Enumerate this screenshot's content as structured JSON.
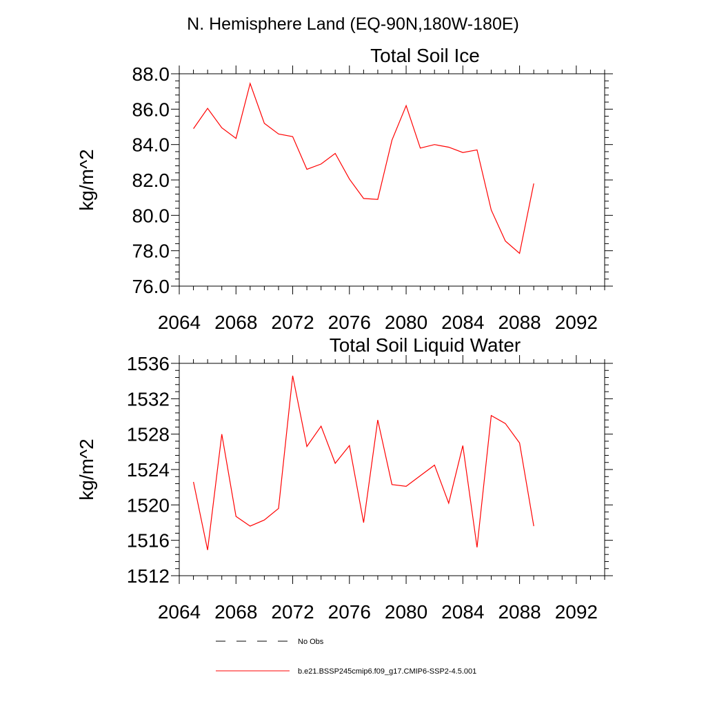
{
  "main_title": "N. Hemisphere Land (EQ-90N,180W-180E)",
  "colors": {
    "series": "#ff0000",
    "axis": "#000000",
    "obs": "#000000"
  },
  "legend": {
    "obs_label": "No Obs",
    "series_label": "b.e21.BSSP245cmip6.f09_g17.CMIP6-SSP2-4.5.001"
  },
  "chart_data": [
    {
      "type": "line",
      "title": "Total Soil Ice",
      "xlabel": "",
      "ylabel": "kg/m^2",
      "xlim": [
        2064,
        2094
      ],
      "ylim": [
        76,
        88
      ],
      "x_ticks": [
        "2064",
        "2068",
        "2072",
        "2076",
        "2080",
        "2084",
        "2088",
        "2092"
      ],
      "y_ticks": [
        "76.0",
        "78.0",
        "80.0",
        "82.0",
        "84.0",
        "86.0",
        "88.0"
      ],
      "grid": false,
      "series": [
        {
          "x": [
            2065,
            2066,
            2067,
            2068,
            2069,
            2070,
            2071,
            2072,
            2073,
            2074,
            2075,
            2076,
            2077,
            2078,
            2079,
            2080,
            2081,
            2082,
            2083,
            2084,
            2085,
            2086,
            2087,
            2088,
            2089
          ],
          "values": [
            84.9,
            86.05,
            84.95,
            84.35,
            87.45,
            85.2,
            84.6,
            84.45,
            82.6,
            82.9,
            83.5,
            82.05,
            80.95,
            80.9,
            84.25,
            86.2,
            83.8,
            84.0,
            83.85,
            83.55,
            83.7,
            80.3,
            78.55,
            77.85,
            81.8
          ]
        }
      ]
    },
    {
      "type": "line",
      "title": "Total Soil Liquid Water",
      "xlabel": "",
      "ylabel": "kg/m^2",
      "xlim": [
        2064,
        2094
      ],
      "ylim": [
        1512,
        1536
      ],
      "x_ticks": [
        "2064",
        "2068",
        "2072",
        "2076",
        "2080",
        "2084",
        "2088",
        "2092"
      ],
      "y_ticks": [
        "1512",
        "1516",
        "1520",
        "1524",
        "1528",
        "1532",
        "1536"
      ],
      "grid": false,
      "series": [
        {
          "x": [
            2065,
            2066,
            2067,
            2068,
            2069,
            2070,
            2071,
            2072,
            2073,
            2074,
            2075,
            2076,
            2077,
            2078,
            2079,
            2080,
            2081,
            2082,
            2083,
            2084,
            2085,
            2086,
            2087,
            2088,
            2089
          ],
          "values": [
            1522.6,
            1514.9,
            1528.0,
            1518.7,
            1517.6,
            1518.3,
            1519.6,
            1534.6,
            1526.6,
            1528.9,
            1524.7,
            1526.7,
            1518.0,
            1529.6,
            1522.3,
            1522.1,
            1523.3,
            1524.5,
            1520.2,
            1526.7,
            1515.2,
            1530.1,
            1529.2,
            1527.0,
            1517.6
          ]
        }
      ]
    }
  ]
}
